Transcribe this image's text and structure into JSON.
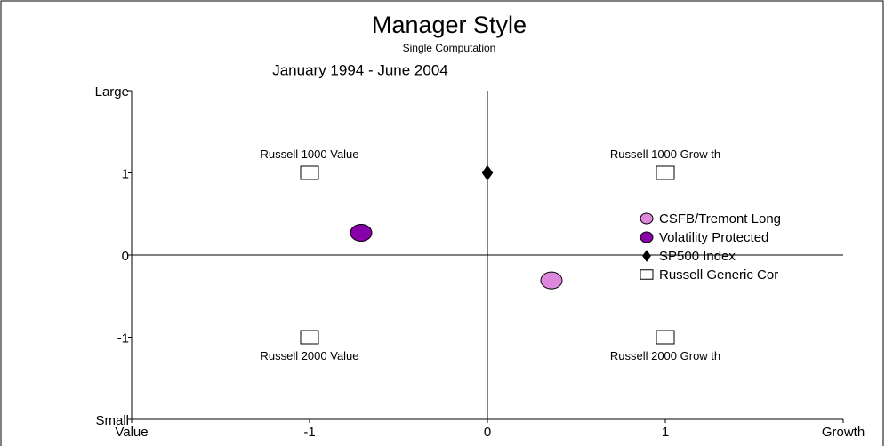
{
  "chart_data": {
    "type": "scatter",
    "title": "Manager Style",
    "subtitle": "Single Computation",
    "period": "January 1994 - June 2004",
    "xlim": [
      -2,
      2
    ],
    "xticks": [
      {
        "value": -2,
        "label": "Value"
      },
      -1,
      0,
      1,
      {
        "value": 2,
        "label": "Growth"
      }
    ],
    "ylim": [
      -2,
      2
    ],
    "yticks": [
      {
        "value": -2,
        "label": "Small"
      },
      -1,
      0,
      1,
      {
        "value": 2,
        "label": "Large"
      }
    ],
    "legend": "right",
    "series": [
      {
        "name": "CSFB/Tremont Long",
        "color": "#dd88dd",
        "marker": "circle",
        "x": [
          0.36
        ],
        "values": [
          -0.31
        ]
      },
      {
        "name": "Volatility Protected",
        "color": "#8800aa",
        "marker": "circle",
        "x": [
          -0.71
        ],
        "values": [
          0.27
        ]
      },
      {
        "name": "SP500 Index",
        "color": "#000000",
        "marker": "diamond",
        "x": [
          0
        ],
        "values": [
          1
        ]
      },
      {
        "name": "Russell Generic Cor",
        "color": "#ffffff",
        "marker": "square",
        "x": [
          -1,
          1,
          -1,
          1
        ],
        "values": [
          1,
          1,
          -1,
          -1
        ],
        "labels": [
          "Russell 1000 Value",
          "Russell 1000 Grow th",
          "Russell 2000 Value",
          "Russell 2000 Grow th"
        ]
      }
    ]
  }
}
